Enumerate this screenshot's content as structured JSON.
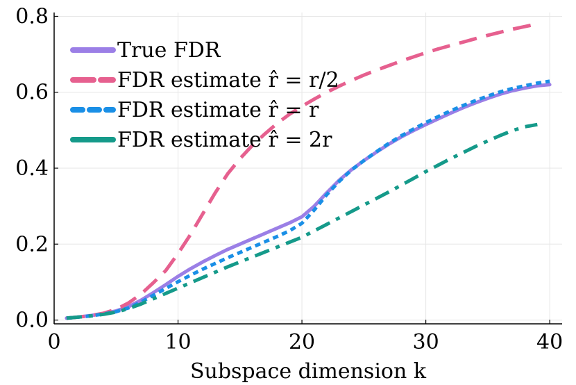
{
  "chart_data": {
    "type": "line",
    "title": "",
    "xlabel": "Subspace dimension k",
    "ylabel": "",
    "xlim": [
      0,
      41
    ],
    "ylim": [
      -0.01,
      0.81
    ],
    "xticks": [
      0,
      10,
      20,
      30,
      40
    ],
    "yticks": [
      0.0,
      0.2,
      0.4,
      0.6,
      0.8
    ],
    "xtick_labels": [
      "0",
      "10",
      "20",
      "30",
      "40"
    ],
    "ytick_labels": [
      "0.0",
      "0.2",
      "0.4",
      "0.6",
      "0.8"
    ],
    "grid": true,
    "legend_position": "top-left",
    "series": [
      {
        "name": "True FDR",
        "legend_label": "True FDR",
        "color": "#9b7fe6",
        "style": "solid",
        "x": [
          1,
          2,
          3,
          4,
          5,
          6,
          7,
          8,
          9,
          10,
          11,
          12,
          13,
          14,
          15,
          16,
          17,
          18,
          19,
          20,
          21,
          22,
          23,
          24,
          25,
          26,
          27,
          28,
          29,
          30,
          31,
          32,
          33,
          34,
          35,
          36,
          37,
          38,
          39,
          40
        ],
        "y": [
          0.005,
          0.008,
          0.012,
          0.017,
          0.024,
          0.035,
          0.052,
          0.072,
          0.093,
          0.115,
          0.135,
          0.153,
          0.17,
          0.186,
          0.2,
          0.214,
          0.228,
          0.242,
          0.256,
          0.272,
          0.3,
          0.335,
          0.368,
          0.396,
          0.42,
          0.442,
          0.463,
          0.482,
          0.499,
          0.515,
          0.53,
          0.545,
          0.559,
          0.572,
          0.584,
          0.595,
          0.604,
          0.611,
          0.617,
          0.62
        ]
      },
      {
        "name": "FDR estimate r̂ = r/2",
        "legend_label": "FDR estimate r̂ = r/2",
        "color": "#e6608f",
        "style": "dashed",
        "x": [
          1,
          2,
          3,
          4,
          5,
          6,
          7,
          8,
          9,
          10,
          11,
          12,
          13,
          14,
          15,
          16,
          17,
          18,
          19,
          20,
          21,
          22,
          23,
          24,
          25,
          26,
          27,
          28,
          29,
          30,
          31,
          32,
          33,
          34,
          35,
          36,
          37,
          38,
          39
        ],
        "y": [
          0.005,
          0.008,
          0.012,
          0.018,
          0.028,
          0.045,
          0.068,
          0.098,
          0.13,
          0.175,
          0.225,
          0.28,
          0.335,
          0.385,
          0.425,
          0.46,
          0.49,
          0.518,
          0.542,
          0.563,
          0.582,
          0.6,
          0.616,
          0.631,
          0.645,
          0.658,
          0.67,
          0.682,
          0.693,
          0.704,
          0.714,
          0.723,
          0.732,
          0.741,
          0.75,
          0.758,
          0.766,
          0.773,
          0.78
        ]
      },
      {
        "name": "FDR estimate r̂ = r",
        "legend_label": "FDR estimate r̂ = r",
        "color": "#1a8fe6",
        "style": "dotted",
        "x": [
          1,
          2,
          3,
          4,
          5,
          6,
          7,
          8,
          9,
          10,
          11,
          12,
          13,
          14,
          15,
          16,
          17,
          18,
          19,
          20,
          21,
          22,
          23,
          24,
          25,
          26,
          27,
          28,
          29,
          30,
          31,
          32,
          33,
          34,
          35,
          36,
          37,
          38,
          39,
          40
        ],
        "y": [
          0.005,
          0.008,
          0.011,
          0.016,
          0.022,
          0.032,
          0.047,
          0.065,
          0.083,
          0.101,
          0.118,
          0.134,
          0.149,
          0.164,
          0.178,
          0.192,
          0.206,
          0.22,
          0.235,
          0.255,
          0.29,
          0.33,
          0.365,
          0.395,
          0.42,
          0.443,
          0.465,
          0.485,
          0.503,
          0.52,
          0.536,
          0.551,
          0.565,
          0.578,
          0.59,
          0.601,
          0.61,
          0.617,
          0.624,
          0.629
        ]
      },
      {
        "name": "FDR estimate r̂ = 2r",
        "legend_label": "FDR estimate r̂ = 2r",
        "color": "#159a8a",
        "style": "dashdot",
        "x": [
          1,
          2,
          3,
          4,
          5,
          6,
          7,
          8,
          9,
          10,
          11,
          12,
          13,
          14,
          15,
          16,
          17,
          18,
          19,
          20,
          21,
          22,
          23,
          24,
          25,
          26,
          27,
          28,
          29,
          30,
          31,
          32,
          33,
          34,
          35,
          36,
          37,
          38,
          39
        ],
        "y": [
          0.005,
          0.008,
          0.011,
          0.015,
          0.021,
          0.03,
          0.042,
          0.056,
          0.07,
          0.084,
          0.098,
          0.112,
          0.126,
          0.14,
          0.153,
          0.166,
          0.179,
          0.192,
          0.205,
          0.218,
          0.235,
          0.252,
          0.269,
          0.286,
          0.303,
          0.32,
          0.337,
          0.355,
          0.373,
          0.391,
          0.408,
          0.425,
          0.441,
          0.457,
          0.472,
          0.486,
          0.499,
          0.509,
          0.515
        ]
      }
    ]
  }
}
